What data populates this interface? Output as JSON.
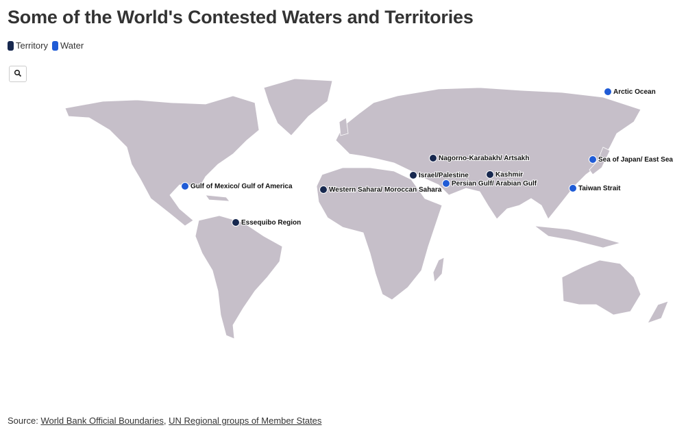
{
  "title": "Some of the World's Contested Waters and Territories",
  "legend": [
    {
      "label": "Territory",
      "color": "#17284f"
    },
    {
      "label": "Water",
      "color": "#1f5bd6"
    }
  ],
  "markers": [
    {
      "label": "Arctic Ocean",
      "kind": 1
    },
    {
      "label": "Sea of Japan/ East Sea",
      "kind": 1
    },
    {
      "label": "Nagorno-Karabakh/ Artsakh",
      "kind": 0
    },
    {
      "label": "Israel/Palestine",
      "kind": 0
    },
    {
      "label": "Kashmir",
      "kind": 0
    },
    {
      "label": "Persian Gulf/ Arabian Gulf",
      "kind": 1
    },
    {
      "label": "Taiwan Strait",
      "kind": 1
    },
    {
      "label": "Gulf of Mexico/ Gulf of America",
      "kind": 1
    },
    {
      "label": "Western Sahara/ Moroccan Sahara",
      "kind": 0
    },
    {
      "label": "Essequibo Region",
      "kind": 0
    }
  ],
  "source": {
    "prefix": "Source:",
    "links": [
      "World Bank Official Boundaries",
      "UN Regional groups of Member States"
    ],
    "separator": ","
  }
}
